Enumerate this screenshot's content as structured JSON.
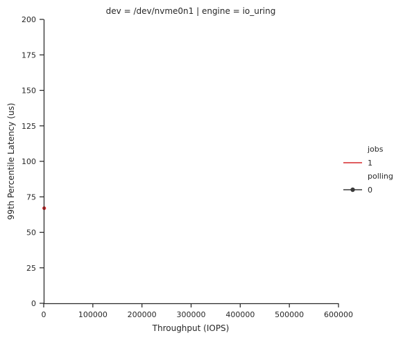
{
  "chart_data": {
    "type": "line",
    "title": "dev = /dev/nvme0n1 | engine = io_uring",
    "xlabel": "Throughput (IOPS)",
    "ylabel": "99th Percentile Latency (us)",
    "xlim": [
      0,
      600000
    ],
    "ylim": [
      0,
      200
    ],
    "xticks": [
      0,
      100000,
      200000,
      300000,
      400000,
      500000,
      600000
    ],
    "yticks": [
      0,
      25,
      50,
      75,
      100,
      125,
      150,
      175,
      200
    ],
    "grid": false,
    "legend_position": "right",
    "series": [
      {
        "jobs": "1",
        "polling": "0",
        "color": "#d62728",
        "marker": "o",
        "points": [
          {
            "x": 1000,
            "y": 67
          }
        ]
      }
    ],
    "legend": {
      "groups": [
        {
          "title": "jobs",
          "entries": [
            {
              "label": "1",
              "style": "line",
              "color": "#d62728"
            }
          ]
        },
        {
          "title": "polling",
          "entries": [
            {
              "label": "0",
              "style": "line-marker",
              "color": "#3a3a3a"
            }
          ]
        }
      ]
    }
  }
}
